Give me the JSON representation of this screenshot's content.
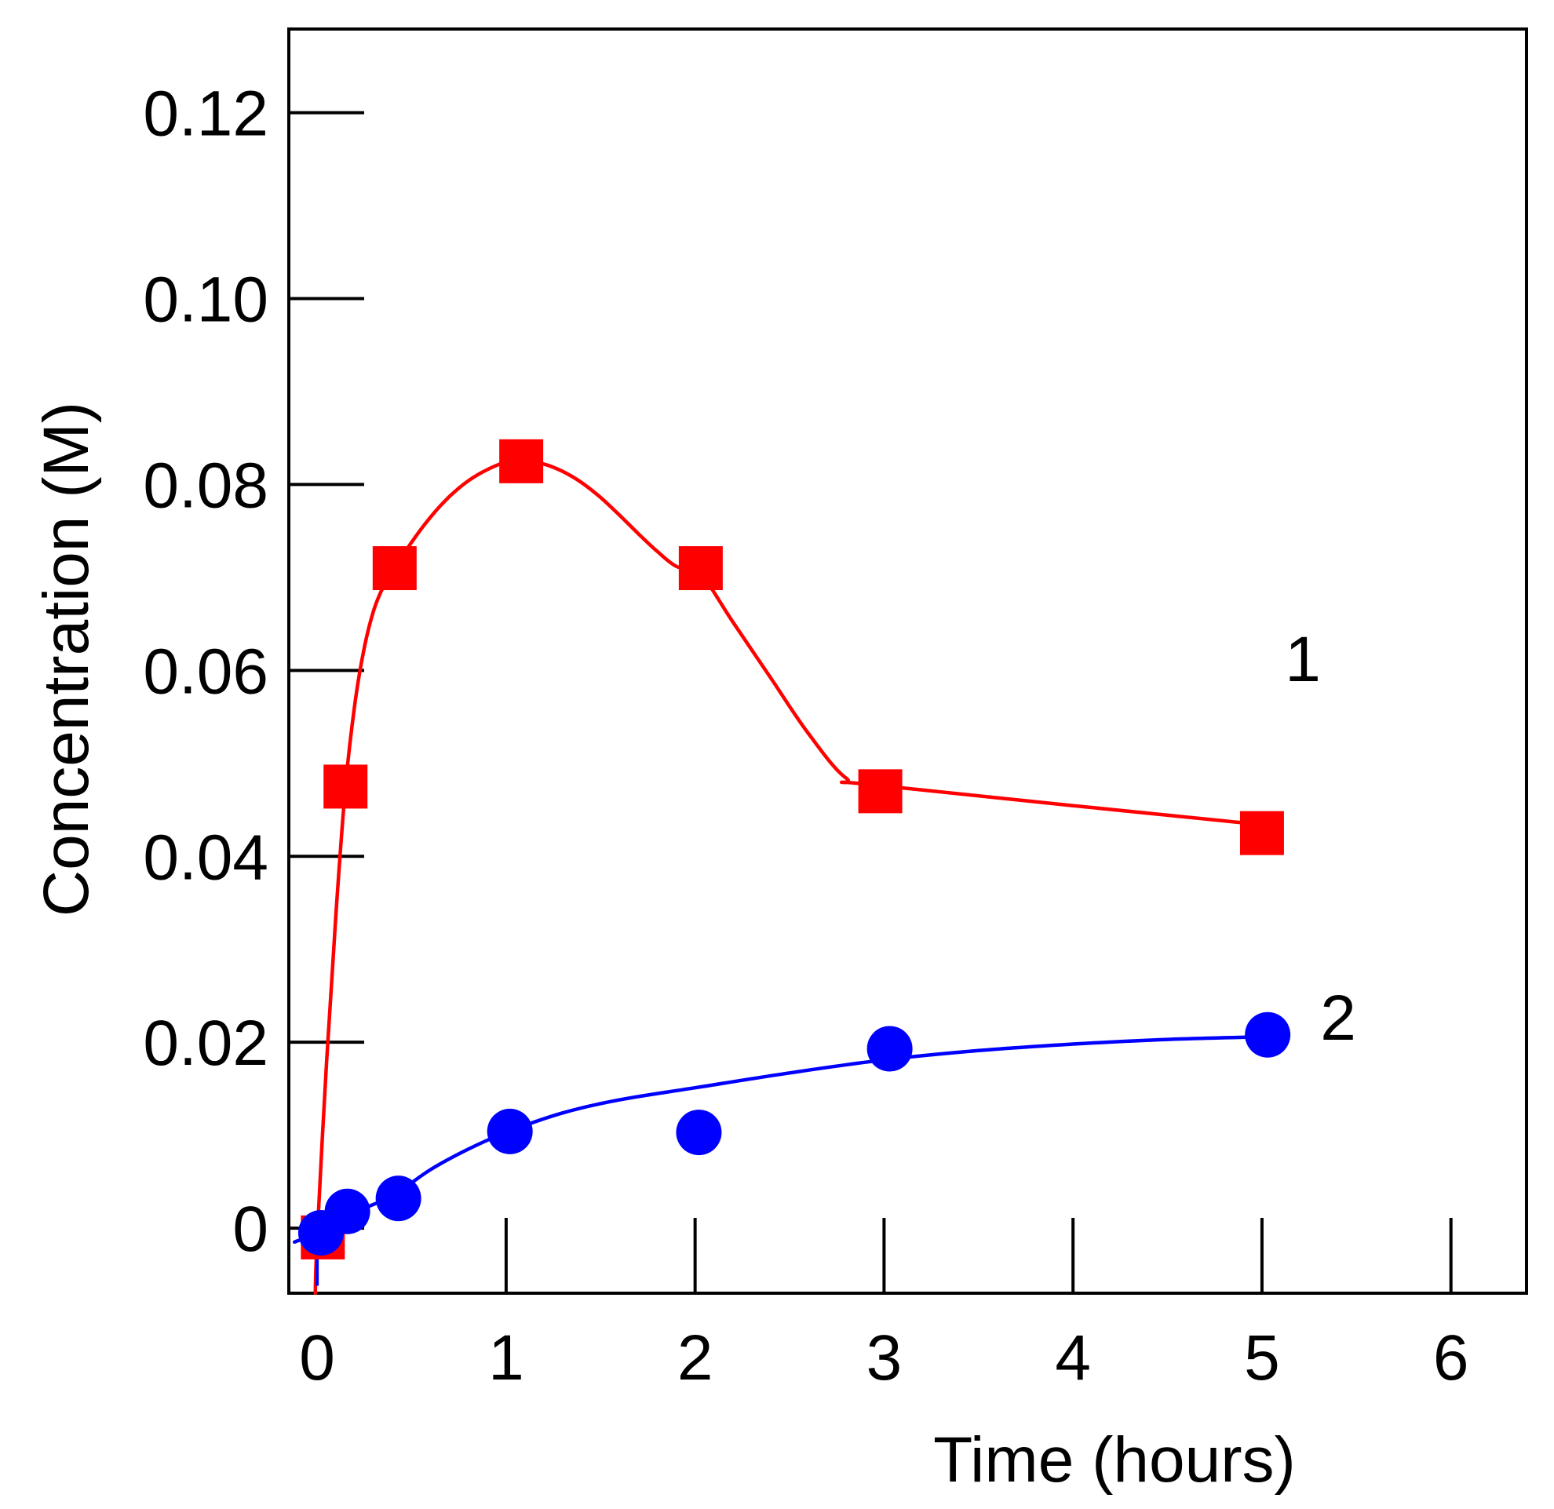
{
  "chart_data": {
    "type": "scatter",
    "title": "",
    "xlabel": "Time  (hours)",
    "ylabel": "Concentration   (M)",
    "xlim": [
      -0.15,
      6.4
    ],
    "ylim": [
      -0.007,
      0.129
    ],
    "x_ticks": [
      0,
      1,
      2,
      3,
      4,
      5,
      6
    ],
    "x_tick_labels": [
      "0",
      "1",
      "2",
      "3",
      "4",
      "5",
      "6"
    ],
    "y_ticks": [
      0,
      0.02,
      0.04,
      0.06,
      0.08,
      0.1,
      0.12
    ],
    "y_tick_labels": [
      "0",
      "0.02",
      "0.04",
      "0.06",
      "0.08",
      "0.10",
      "0.12"
    ],
    "grid": false,
    "legend": "none",
    "series": [
      {
        "name": "1",
        "label": "1",
        "marker": "square",
        "color": "#ff0000",
        "x": [
          0.03,
          0.15,
          0.41,
          1.08,
          2.03,
          2.98,
          5.0
        ],
        "y": [
          -0.001,
          0.0475,
          0.071,
          0.0825,
          0.071,
          0.047,
          0.0425
        ],
        "curve_x": [
          -0.01,
          0.0,
          0.05,
          0.1,
          0.15,
          0.2,
          0.25,
          0.3,
          0.35,
          0.41,
          0.5,
          0.6,
          0.7,
          0.8,
          0.9,
          1.0,
          1.1,
          1.2,
          1.3,
          1.4,
          1.5,
          1.6,
          1.7,
          1.8,
          1.9,
          2.03,
          2.2,
          2.4,
          2.6,
          2.8,
          2.98,
          5.0
        ],
        "curve_y": [
          -0.007,
          -0.001,
          0.018,
          0.034,
          0.0475,
          0.0565,
          0.0625,
          0.0665,
          0.069,
          0.071,
          0.0738,
          0.0765,
          0.0787,
          0.0804,
          0.0816,
          0.0824,
          0.0825,
          0.0822,
          0.0814,
          0.0802,
          0.0786,
          0.0767,
          0.0747,
          0.0728,
          0.0712,
          0.0703,
          0.0652,
          0.0592,
          0.0532,
          0.0484,
          0.0476,
          0.0434
        ]
      },
      {
        "name": "2",
        "label": "2",
        "marker": "circle",
        "color": "#0000ff",
        "x": [
          0.02,
          0.16,
          0.43,
          1.02,
          2.02,
          3.03,
          5.03
        ],
        "y": [
          -0.0005,
          0.0018,
          0.0032,
          0.0104,
          0.0103,
          0.0193,
          0.0208
        ],
        "curve_x": [
          -0.12,
          0.0,
          0.2,
          0.4,
          0.6,
          0.8,
          1.0,
          1.3,
          1.6,
          2.0,
          2.5,
          3.0,
          3.5,
          4.0,
          4.5,
          5.03
        ],
        "curve_y": [
          -0.0015,
          -0.0005,
          0.0017,
          0.0035,
          0.0063,
          0.0085,
          0.0103,
          0.0124,
          0.0138,
          0.0151,
          0.0167,
          0.0181,
          0.0191,
          0.0198,
          0.0203,
          0.0206
        ],
        "stub_x": [
          0.0,
          0.0
        ],
        "stub_y": [
          0.0,
          -0.0062
        ]
      }
    ]
  }
}
